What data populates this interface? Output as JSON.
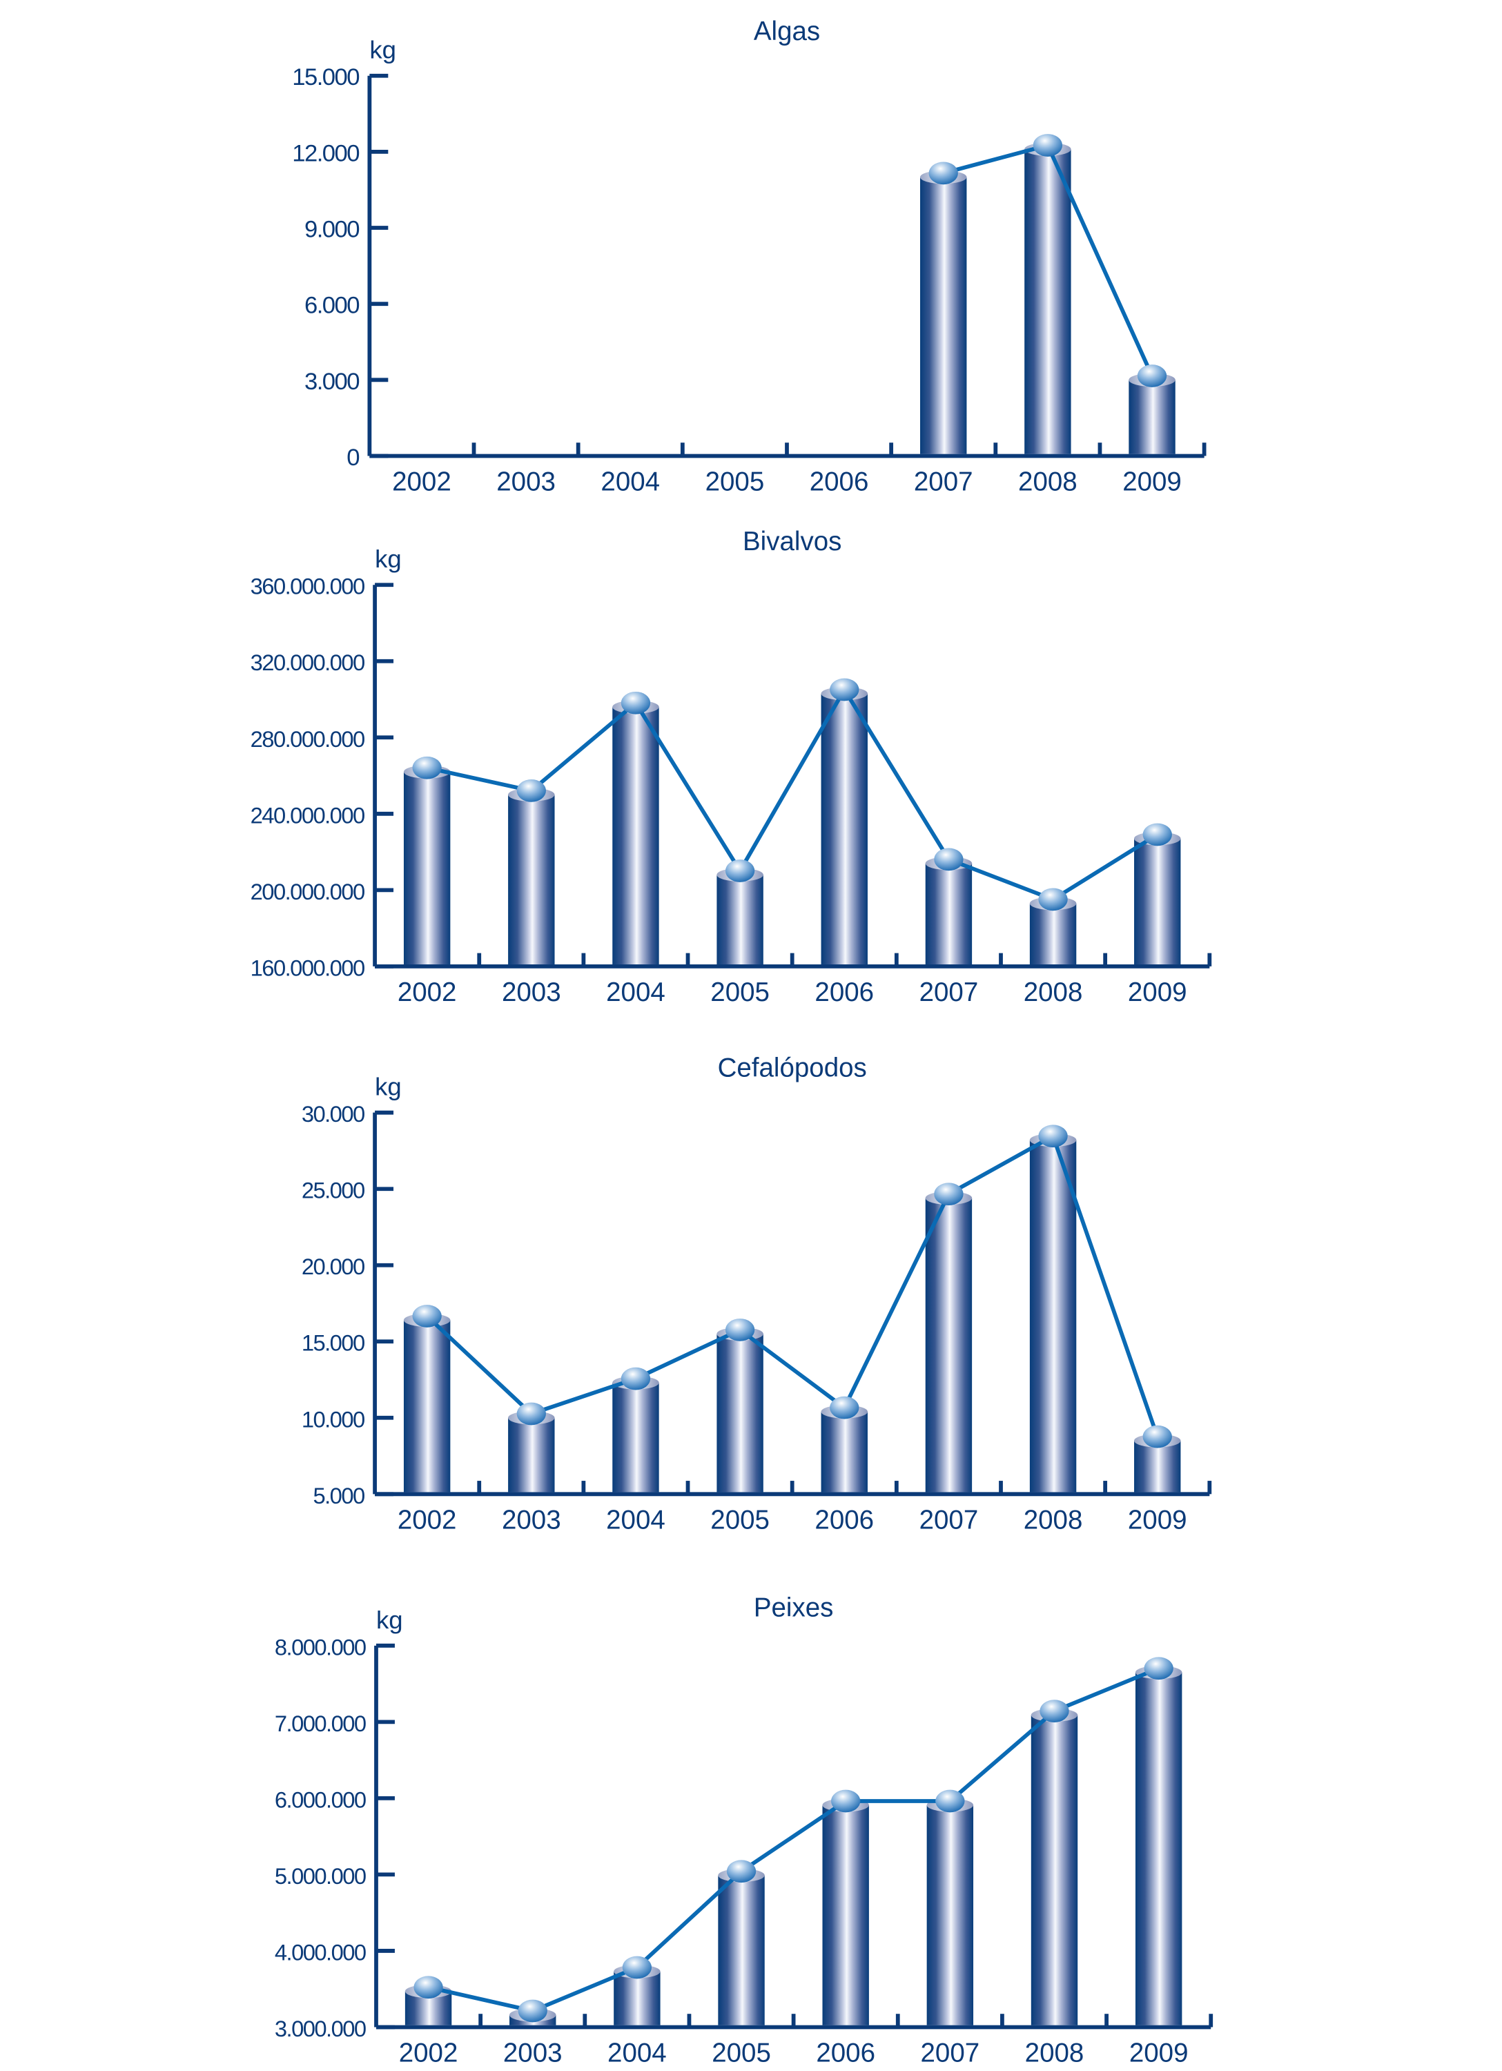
{
  "colors": {
    "axis": "#0b3a78",
    "line": "#0a6ab4",
    "bar_dark": "#083d7a",
    "bar_light": "#f4f6fb"
  },
  "chart_data": [
    {
      "type": "bar",
      "title": "Algas",
      "ylabel": "kg",
      "categories": [
        "2002",
        "2003",
        "2004",
        "2005",
        "2006",
        "2007",
        "2008",
        "2009"
      ],
      "values": [
        null,
        null,
        null,
        null,
        null,
        11000,
        12100,
        3000
      ],
      "ylim": [
        0,
        15000
      ],
      "yticks": [
        "0",
        "3.000",
        "6.000",
        "9.000",
        "12.000",
        "15.000"
      ],
      "overlay": "line"
    },
    {
      "type": "bar",
      "title": "Bivalvos",
      "ylabel": "kg",
      "categories": [
        "2002",
        "2003",
        "2004",
        "2005",
        "2006",
        "2007",
        "2008",
        "2009"
      ],
      "values": [
        262000000,
        250000000,
        296000000,
        208000000,
        303000000,
        214000000,
        193000000,
        227000000
      ],
      "ylim": [
        160000000,
        360000000
      ],
      "yticks": [
        "160.000.000",
        "200.000.000",
        "240.000.000",
        "280.000.000",
        "320.000.000",
        "360.000.000"
      ],
      "overlay": "line"
    },
    {
      "type": "bar",
      "title": "Cefalópodos",
      "ylabel": "kg",
      "categories": [
        "2002",
        "2003",
        "2004",
        "2005",
        "2006",
        "2007",
        "2008",
        "2009"
      ],
      "values": [
        16400,
        10000,
        12300,
        15500,
        10400,
        24400,
        28200,
        8500
      ],
      "ylim": [
        5000,
        30000
      ],
      "yticks": [
        "5.000",
        "10.000",
        "15.000",
        "20.000",
        "25.000",
        "30.000"
      ],
      "overlay": "line"
    },
    {
      "type": "bar",
      "title": "Peixes",
      "ylabel": "kg",
      "categories": [
        "2002",
        "2003",
        "2004",
        "2005",
        "2006",
        "2007",
        "2008",
        "2009"
      ],
      "values": [
        3470000,
        3160000,
        3730000,
        4990000,
        5910000,
        5910000,
        7090000,
        7650000
      ],
      "ylim": [
        3000000,
        8000000
      ],
      "yticks": [
        "3.000.000",
        "4.000.000",
        "5.000.000",
        "6.000.000",
        "7.000.000",
        "8.000.000"
      ],
      "overlay": "line"
    }
  ]
}
